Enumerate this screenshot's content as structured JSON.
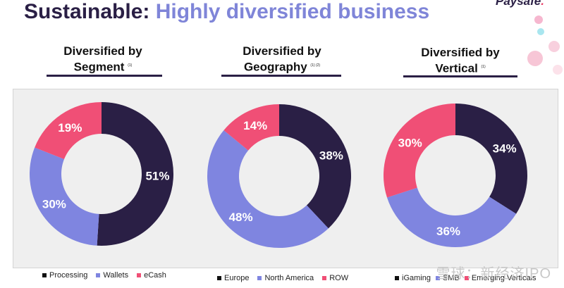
{
  "title": {
    "main": "Sustainable:",
    "accent": "Highly diversified business"
  },
  "brand": "Paysafe",
  "brand_dot": ".",
  "watermark": "雪球：新经济IPO",
  "colors": {
    "dark": "#2a1f45",
    "blue": "#7f85e0",
    "pink": "#f04f76"
  },
  "chart_data": [
    {
      "type": "pie",
      "title": "Diversified by Segment",
      "title_line1": "Diversified by",
      "title_line2": "Segment",
      "footnote": "(1)",
      "categories": [
        "Processing",
        "Wallets",
        "eCash"
      ],
      "values": [
        51,
        30,
        19
      ],
      "labels": [
        "51%",
        "30%",
        "19%"
      ]
    },
    {
      "type": "pie",
      "title": "Diversified by Geography",
      "title_line1": "Diversified by",
      "title_line2": "Geography",
      "footnote": "(1) (2)",
      "categories": [
        "Europe",
        "North America",
        "ROW"
      ],
      "values": [
        38,
        48,
        14
      ],
      "labels": [
        "38%",
        "48%",
        "14%"
      ]
    },
    {
      "type": "pie",
      "title": "Diversified by Vertical",
      "title_line1": "Diversified by",
      "title_line2": "Vertical",
      "footnote": "(1)",
      "categories": [
        "iGaming",
        "SMB",
        "Emerging Verticals"
      ],
      "values": [
        34,
        36,
        30
      ],
      "labels": [
        "34%",
        "36%",
        "30%"
      ]
    }
  ]
}
